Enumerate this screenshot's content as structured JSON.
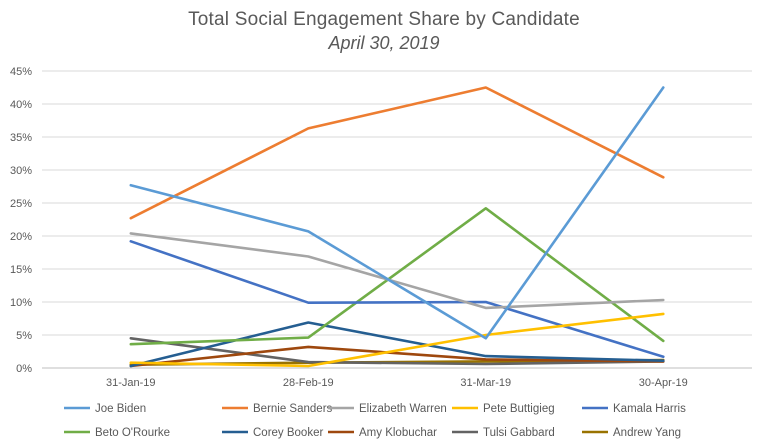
{
  "chart_data": {
    "type": "line",
    "title": "Total Social Engagement Share by Candidate",
    "subtitle": "April 30, 2019",
    "xlabel": "",
    "ylabel": "",
    "categories": [
      "31-Jan-19",
      "28-Feb-19",
      "31-Mar-19",
      "30-Apr-19"
    ],
    "ylim": [
      0,
      45
    ],
    "yticks": [
      0,
      5,
      10,
      15,
      20,
      25,
      30,
      35,
      40,
      45
    ],
    "ytick_labels": [
      "0%",
      "5%",
      "10%",
      "15%",
      "20%",
      "25%",
      "30%",
      "35%",
      "40%",
      "45%"
    ],
    "grid": true,
    "legend_position": "bottom",
    "series": [
      {
        "name": "Joe Biden",
        "color": "#5b9bd5",
        "values": [
          27.7,
          20.7,
          4.5,
          42.5
        ]
      },
      {
        "name": "Bernie Sanders",
        "color": "#ed7d31",
        "values": [
          22.7,
          36.3,
          42.5,
          28.9
        ]
      },
      {
        "name": "Elizabeth Warren",
        "color": "#a5a5a5",
        "values": [
          20.4,
          16.9,
          9.1,
          10.3
        ]
      },
      {
        "name": "Pete Buttigieg",
        "color": "#ffc000",
        "values": [
          0.8,
          0.3,
          5.0,
          8.2
        ]
      },
      {
        "name": "Kamala Harris",
        "color": "#4472c4",
        "values": [
          19.2,
          9.9,
          10.0,
          1.7
        ]
      },
      {
        "name": "Beto O'Rourke",
        "color": "#70ad47",
        "values": [
          3.6,
          4.6,
          24.2,
          4.1
        ]
      },
      {
        "name": "Corey Booker",
        "color": "#255e91",
        "values": [
          0.3,
          6.9,
          1.8,
          1.1
        ]
      },
      {
        "name": "Amy Klobuchar",
        "color": "#9e480e",
        "values": [
          0.3,
          3.2,
          1.3,
          1.0
        ]
      },
      {
        "name": "Tulsi Gabbard",
        "color": "#636363",
        "values": [
          4.5,
          0.9,
          0.6,
          1.0
        ]
      },
      {
        "name": "Andrew Yang",
        "color": "#997300",
        "values": [
          0.5,
          0.8,
          1.0,
          1.2
        ]
      }
    ]
  }
}
